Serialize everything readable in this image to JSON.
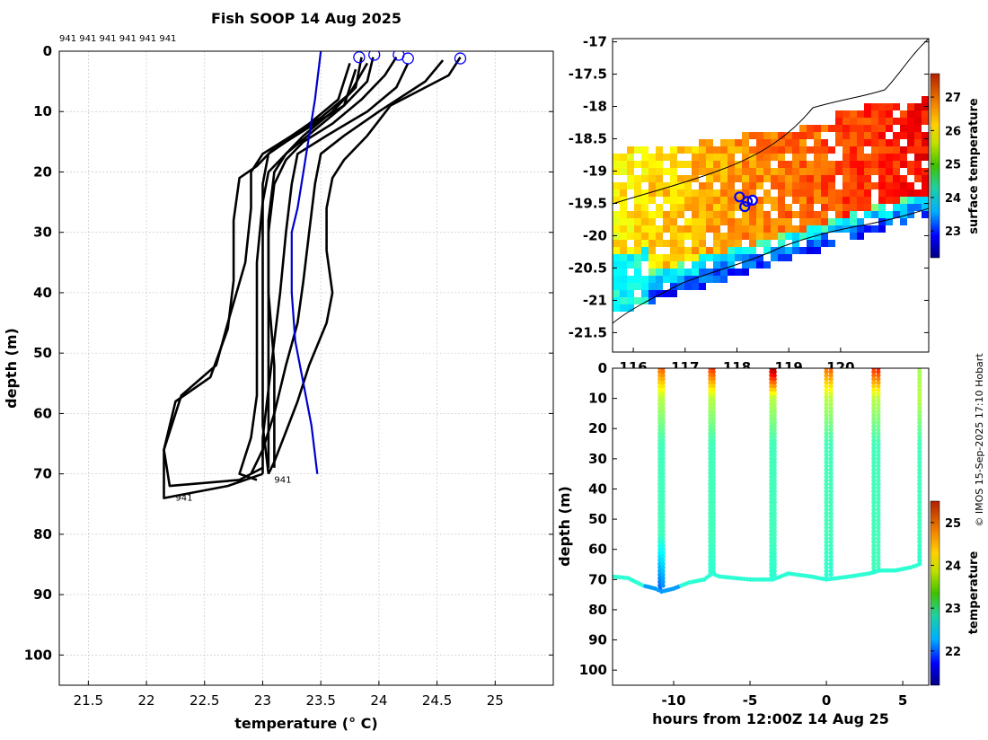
{
  "page": {
    "title": "Fish SOOP 14 Aug 2025",
    "credit": "© IMOS 15-Sep-2025 17:10 Hobart",
    "profile_label_row": "941 941 941 941 941 941"
  },
  "chart_data": [
    {
      "type": "line",
      "name": "temperature-depth profiles",
      "xlabel": "temperature (° C)",
      "ylabel": "depth (m)",
      "xlim": [
        21.25,
        25.5
      ],
      "ylim": [
        105,
        0
      ],
      "xticks": [
        "21.5",
        "22",
        "22.5",
        "23",
        "23.5",
        "24",
        "24.5",
        "25"
      ],
      "yticks": [
        "0",
        "10",
        "20",
        "30",
        "40",
        "50",
        "60",
        "70",
        "80",
        "90",
        "100"
      ],
      "grid": true,
      "series": [
        {
          "name": "profile 1",
          "color": "#000000",
          "points": [
            [
              24.7,
              1
            ],
            [
              24.6,
              4
            ],
            [
              24.1,
              9
            ],
            [
              23.9,
              14
            ],
            [
              23.7,
              18
            ],
            [
              23.6,
              21
            ],
            [
              23.55,
              26
            ],
            [
              23.55,
              33
            ],
            [
              23.6,
              40
            ],
            [
              23.55,
              45
            ],
            [
              23.4,
              52
            ],
            [
              23.3,
              58
            ],
            [
              23.2,
              63
            ],
            [
              23.1,
              68
            ],
            [
              23.05,
              70
            ]
          ]
        },
        {
          "name": "profile 2",
          "color": "#000000",
          "points": [
            [
              24.55,
              1.5
            ],
            [
              24.4,
              5
            ],
            [
              24.0,
              10
            ],
            [
              23.7,
              14
            ],
            [
              23.5,
              17
            ],
            [
              23.45,
              22
            ],
            [
              23.4,
              30
            ],
            [
              23.35,
              38
            ],
            [
              23.3,
              45
            ],
            [
              23.2,
              52
            ],
            [
              23.1,
              60
            ],
            [
              23.0,
              66
            ],
            [
              22.9,
              70
            ]
          ]
        },
        {
          "name": "profile 3",
          "color": "#000000",
          "points": [
            [
              24.25,
              2
            ],
            [
              24.15,
              6
            ],
            [
              23.9,
              10
            ],
            [
              23.55,
              14
            ],
            [
              23.3,
              17
            ],
            [
              23.25,
              22
            ],
            [
              23.2,
              30
            ],
            [
              23.15,
              40
            ],
            [
              23.1,
              48
            ],
            [
              23.05,
              56
            ],
            [
              23.0,
              64
            ],
            [
              23.0,
              70
            ]
          ]
        },
        {
          "name": "profile 4",
          "color": "#000000",
          "points": [
            [
              24.15,
              1
            ],
            [
              24.05,
              4
            ],
            [
              23.85,
              8
            ],
            [
              23.6,
              12
            ],
            [
              23.35,
              15
            ],
            [
              23.2,
              18
            ],
            [
              23.1,
              22
            ],
            [
              23.05,
              30
            ],
            [
              23.05,
              40
            ],
            [
              23.05,
              50
            ],
            [
              23.05,
              60
            ],
            [
              23.05,
              69
            ]
          ]
        },
        {
          "name": "profile 5",
          "color": "#000000",
          "points": [
            [
              23.95,
              1
            ],
            [
              23.9,
              5
            ],
            [
              23.7,
              9
            ],
            [
              23.45,
              12
            ],
            [
              23.2,
              15
            ],
            [
              23.05,
              17
            ],
            [
              23.0,
              22
            ],
            [
              23.0,
              35
            ],
            [
              23.0,
              50
            ],
            [
              23.0,
              62
            ],
            [
              23.05,
              70
            ]
          ]
        },
        {
          "name": "profile 6",
          "color": "#000000",
          "points": [
            [
              23.85,
              1
            ],
            [
              23.8,
              6
            ],
            [
              23.6,
              10
            ],
            [
              23.35,
              14
            ],
            [
              23.2,
              17
            ],
            [
              23.1,
              20
            ],
            [
              23.05,
              28
            ],
            [
              23.05,
              40
            ],
            [
              23.1,
              52
            ],
            [
              23.1,
              62
            ],
            [
              23.1,
              69
            ]
          ]
        },
        {
          "name": "profile 7",
          "color": "#000000",
          "points": [
            [
              23.9,
              2
            ],
            [
              23.75,
              7
            ],
            [
              23.5,
              11
            ],
            [
              23.25,
              14
            ],
            [
              23.0,
              17
            ],
            [
              22.9,
              20
            ],
            [
              22.9,
              26
            ],
            [
              22.85,
              35
            ],
            [
              22.7,
              45
            ],
            [
              22.6,
              52
            ],
            [
              22.3,
              57
            ],
            [
              22.15,
              66
            ],
            [
              22.15,
              74
            ],
            [
              22.7,
              72
            ],
            [
              23.0,
              70
            ]
          ]
        },
        {
          "name": "profile 8",
          "color": "#000000",
          "points": [
            [
              23.75,
              2
            ],
            [
              23.65,
              8
            ],
            [
              23.4,
              12
            ],
            [
              23.1,
              16
            ],
            [
              22.95,
              19
            ],
            [
              22.8,
              21
            ],
            [
              22.75,
              28
            ],
            [
              22.75,
              38
            ],
            [
              22.7,
              46
            ],
            [
              22.55,
              54
            ],
            [
              22.25,
              58
            ],
            [
              22.15,
              66
            ],
            [
              22.2,
              72
            ],
            [
              22.8,
              71
            ],
            [
              23.0,
              69
            ]
          ]
        },
        {
          "name": "profile 9",
          "color": "#000000",
          "points": [
            [
              23.8,
              3
            ],
            [
              23.7,
              9
            ],
            [
              23.45,
              13
            ],
            [
              23.2,
              17
            ],
            [
              23.05,
              20
            ],
            [
              23.0,
              25
            ],
            [
              22.95,
              35
            ],
            [
              22.95,
              48
            ],
            [
              22.95,
              57
            ],
            [
              22.9,
              64
            ],
            [
              22.8,
              70
            ],
            [
              22.95,
              71
            ]
          ]
        }
      ],
      "reference": {
        "name": "climatology",
        "color": "#0000cc",
        "points": [
          [
            23.5,
            0
          ],
          [
            23.45,
            8
          ],
          [
            23.4,
            14
          ],
          [
            23.35,
            20
          ],
          [
            23.3,
            26
          ],
          [
            23.25,
            30
          ],
          [
            23.25,
            40
          ],
          [
            23.28,
            48
          ],
          [
            23.35,
            55
          ],
          [
            23.42,
            62
          ],
          [
            23.47,
            70
          ]
        ]
      },
      "surface_markers": {
        "color": "#0000ff",
        "points": [
          [
            23.83,
            1
          ],
          [
            23.96,
            0.6
          ],
          [
            24.17,
            0.6
          ],
          [
            24.25,
            1.2
          ],
          [
            24.7,
            1.2
          ]
        ]
      },
      "annotations": [
        {
          "text": "941",
          "x": 22.25,
          "y": 74
        },
        {
          "text": "941",
          "x": 23.1,
          "y": 71
        }
      ]
    },
    {
      "type": "heatmap",
      "name": "surface temperature map",
      "xlim": [
        115.6,
        121.7
      ],
      "ylim": [
        -21.8,
        -16.95
      ],
      "xticks": [
        "116",
        "117",
        "118",
        "119",
        "120"
      ],
      "yticks": [
        "-17",
        "-17.5",
        "-18",
        "-18.5",
        "-19",
        "-19.5",
        "-20",
        "-20.5",
        "-21",
        "-21.5"
      ],
      "colorbar": {
        "label": "surface temperature",
        "range": [
          22.2,
          27.7
        ],
        "ticks": [
          "23",
          "24",
          "25",
          "26",
          "27"
        ]
      },
      "track_markers": {
        "color": "#0000ff",
        "points": [
          [
            118.05,
            -19.4
          ],
          [
            118.3,
            -19.45
          ],
          [
            118.15,
            -19.55
          ],
          [
            118.2,
            -19.47
          ]
        ]
      }
    },
    {
      "type": "scatter",
      "name": "depth-time section",
      "xlabel": "hours from 12:00Z 14 Aug 25",
      "ylabel": "depth (m)",
      "xlim": [
        -14,
        6.7
      ],
      "ylim": [
        105,
        0
      ],
      "xticks": [
        "-10",
        "-5",
        "0",
        "5"
      ],
      "yticks": [
        "0",
        "10",
        "20",
        "30",
        "40",
        "50",
        "60",
        "70",
        "80",
        "90",
        "100"
      ],
      "colorbar": {
        "label": "temperature",
        "range": [
          21.2,
          25.5
        ],
        "ticks": [
          "22",
          "23",
          "24",
          "25"
        ]
      },
      "profiles": [
        {
          "time": -10.9,
          "bottom": 74,
          "sst": 24.5,
          "bottom_temp": 22.1
        },
        {
          "time": -10.7,
          "bottom": 73,
          "sst": 24.6,
          "bottom_temp": 22.3
        },
        {
          "time": -7.6,
          "bottom": 69,
          "sst": 24.7,
          "bottom_temp": 23.0
        },
        {
          "time": -7.4,
          "bottom": 68,
          "sst": 24.8,
          "bottom_temp": 23.0
        },
        {
          "time": -3.6,
          "bottom": 70,
          "sst": 25.3,
          "bottom_temp": 23.0
        },
        {
          "time": -3.4,
          "bottom": 69,
          "sst": 25.4,
          "bottom_temp": 23.0
        },
        {
          "time": 0.0,
          "bottom": 70,
          "sst": 24.5,
          "bottom_temp": 23.0
        },
        {
          "time": 0.3,
          "bottom": 69,
          "sst": 24.6,
          "bottom_temp": 23.0
        },
        {
          "time": 3.1,
          "bottom": 68,
          "sst": 24.8,
          "bottom_temp": 23.1
        },
        {
          "time": 3.4,
          "bottom": 67,
          "sst": 24.9,
          "bottom_temp": 23.1
        },
        {
          "time": 6.1,
          "bottom": 65,
          "sst": 23.5,
          "bottom_temp": 23.0
        }
      ],
      "bottom_track": [
        [
          -14,
          69
        ],
        [
          -13,
          69.5
        ],
        [
          -12,
          72
        ],
        [
          -11.2,
          73
        ],
        [
          -10.8,
          74
        ],
        [
          -10.0,
          73
        ],
        [
          -9,
          71
        ],
        [
          -8,
          70
        ],
        [
          -7.5,
          68
        ],
        [
          -7.0,
          69
        ],
        [
          -5,
          70
        ],
        [
          -3.5,
          70
        ],
        [
          -2.5,
          68
        ],
        [
          -1,
          69
        ],
        [
          0,
          70
        ],
        [
          1.5,
          69
        ],
        [
          2.8,
          68
        ],
        [
          3.5,
          67
        ],
        [
          4.5,
          67
        ],
        [
          5.5,
          66
        ],
        [
          6.1,
          65
        ]
      ]
    }
  ]
}
